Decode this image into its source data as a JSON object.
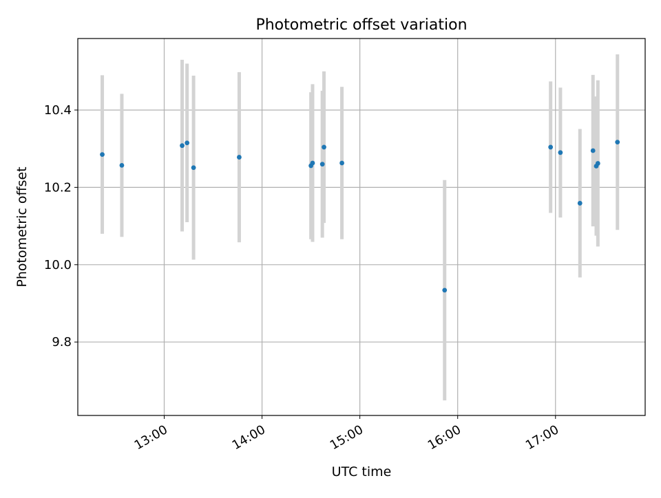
{
  "chart_data": {
    "type": "scatter",
    "title": "Photometric offset variation",
    "xlabel": "UTC time",
    "ylabel": "Photometric offset",
    "xlim": [
      "12:07",
      "17:55"
    ],
    "ylim": [
      9.61,
      10.585
    ],
    "grid": true,
    "legend": "none",
    "x_ticks": [
      "13:00",
      "14:00",
      "15:00",
      "16:00",
      "17:00"
    ],
    "y_ticks": [
      "9.8",
      "10.0",
      "10.2",
      "10.4"
    ],
    "marker_color": "#1f77b4",
    "errorbar_color": "#d3d3d3",
    "points": [
      {
        "time": "12:22",
        "y": 10.285,
        "err": 0.205
      },
      {
        "time": "12:34",
        "y": 10.257,
        "err": 0.185
      },
      {
        "time": "13:11",
        "y": 10.308,
        "err": 0.222
      },
      {
        "time": "13:14",
        "y": 10.315,
        "err": 0.205
      },
      {
        "time": "13:18",
        "y": 10.251,
        "err": 0.238
      },
      {
        "time": "13:46",
        "y": 10.278,
        "err": 0.22
      },
      {
        "time": "14:30",
        "y": 10.256,
        "err": 0.19
      },
      {
        "time": "14:31",
        "y": 10.263,
        "err": 0.204
      },
      {
        "time": "14:37",
        "y": 10.26,
        "err": 0.19
      },
      {
        "time": "14:38",
        "y": 10.304,
        "err": 0.196
      },
      {
        "time": "14:49",
        "y": 10.263,
        "err": 0.197
      },
      {
        "time": "15:52",
        "y": 9.934,
        "err": 0.285
      },
      {
        "time": "16:57",
        "y": 10.304,
        "err": 0.17
      },
      {
        "time": "17:03",
        "y": 10.29,
        "err": 0.168
      },
      {
        "time": "17:15",
        "y": 10.159,
        "err": 0.192
      },
      {
        "time": "17:23",
        "y": 10.295,
        "err": 0.196
      },
      {
        "time": "17:25",
        "y": 10.255,
        "err": 0.18
      },
      {
        "time": "17:26",
        "y": 10.262,
        "err": 0.215
      },
      {
        "time": "17:38",
        "y": 10.317,
        "err": 0.227
      }
    ]
  }
}
